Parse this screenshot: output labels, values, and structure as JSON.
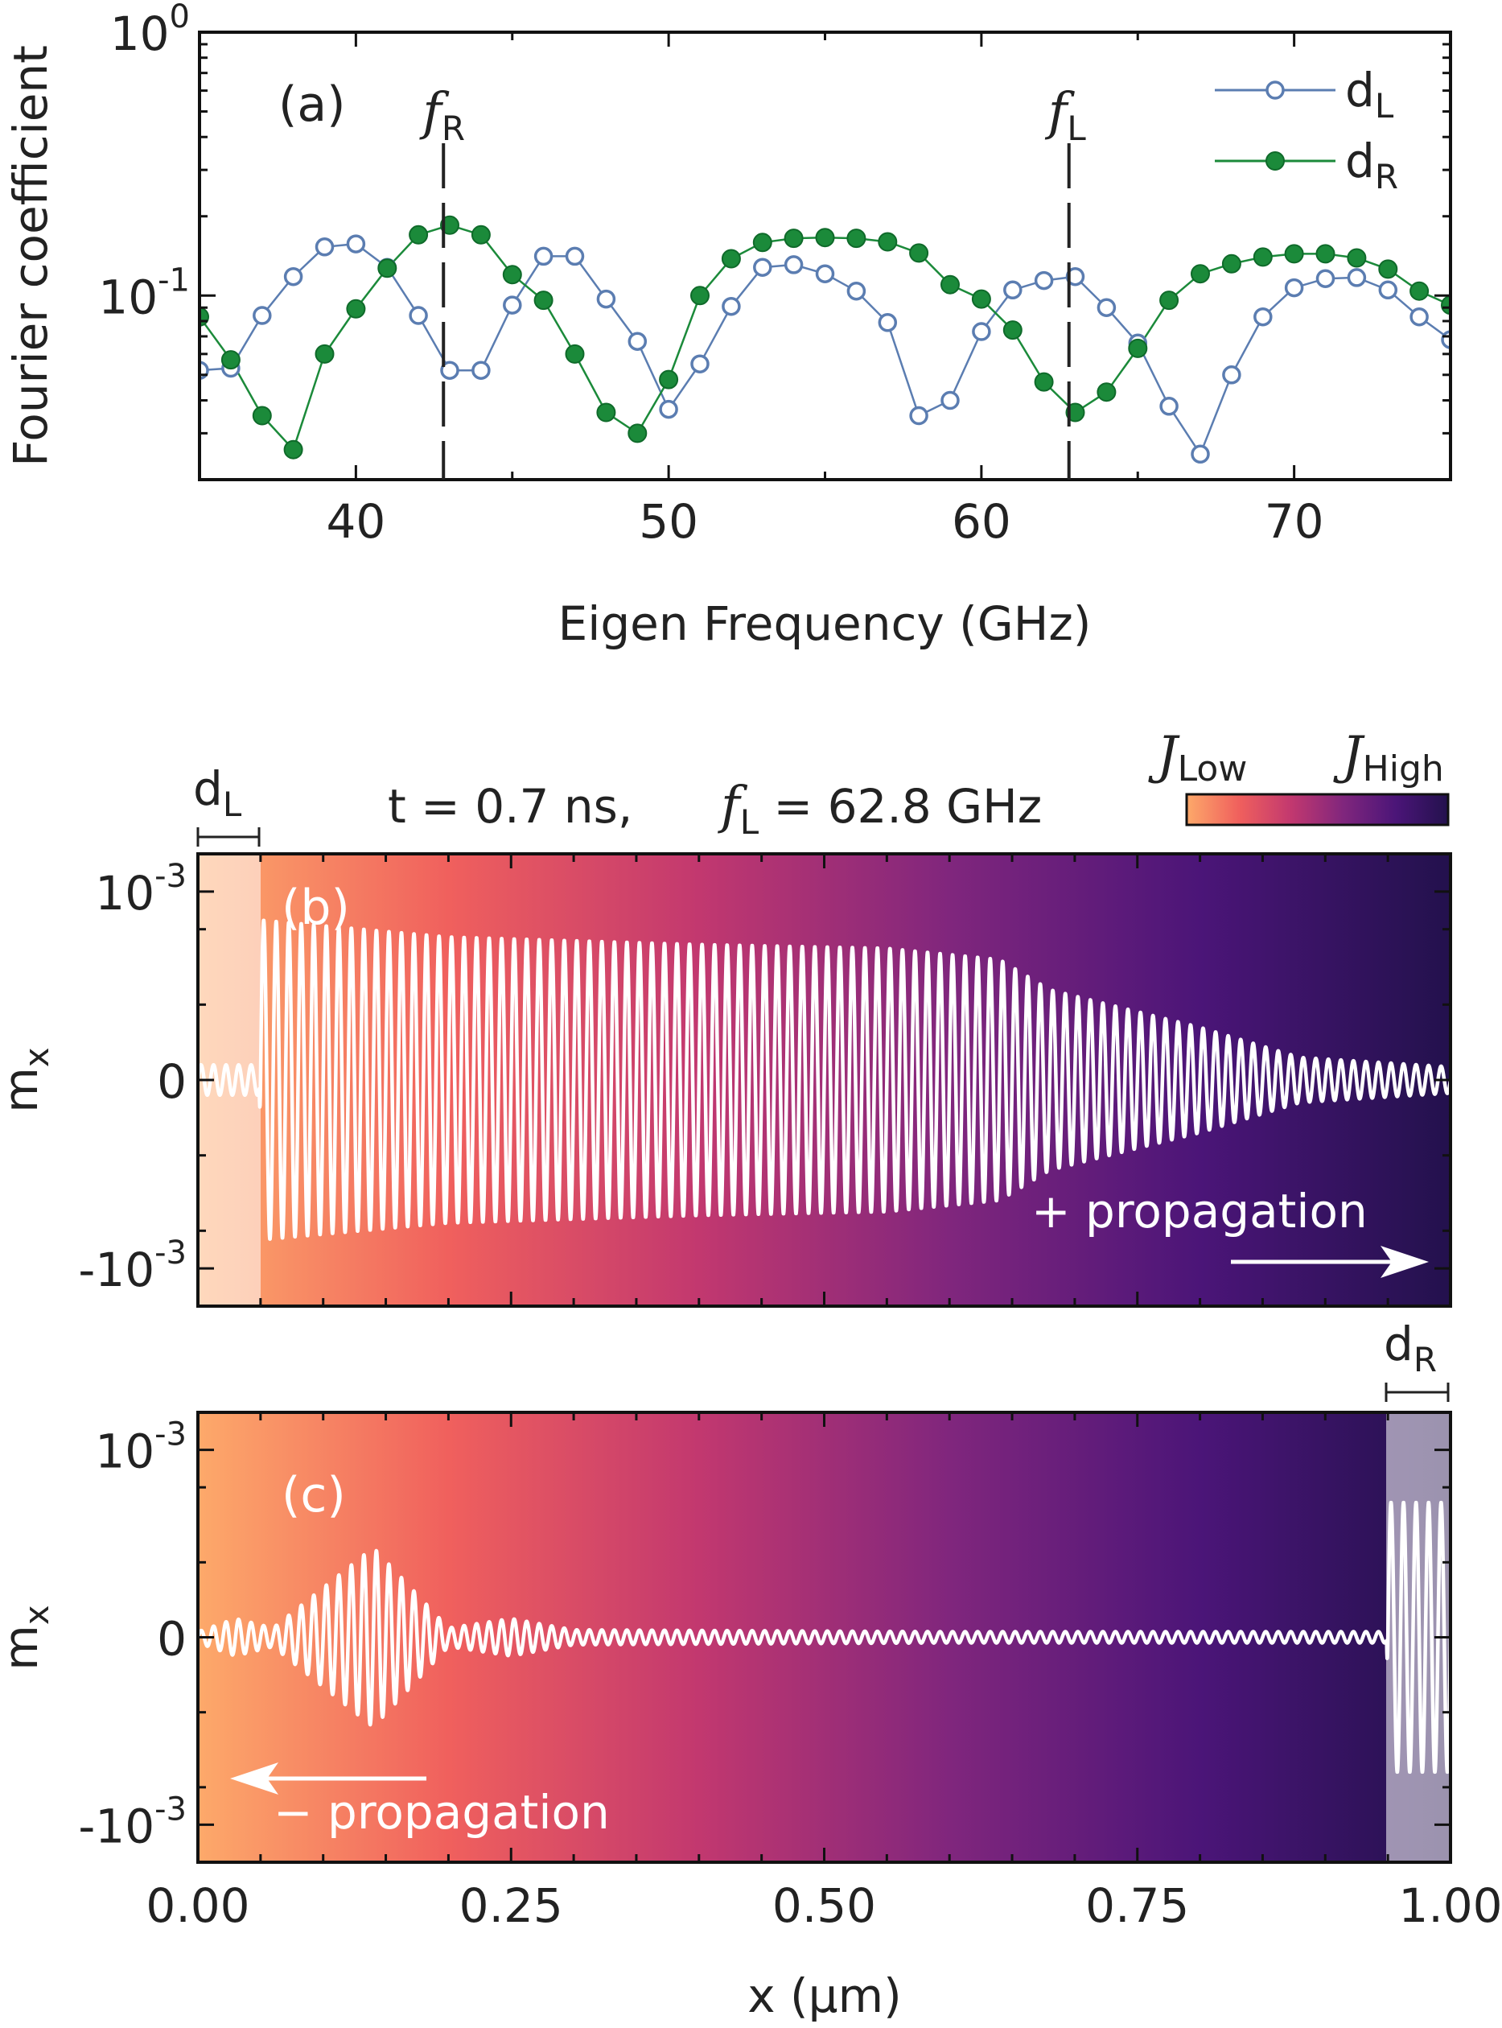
{
  "chart_data": [
    {
      "panel": "(a)",
      "type": "line",
      "xlabel": "Eigen Frequency (GHz)",
      "ylabel": "Fourier coefficient",
      "xlim": [
        35,
        75
      ],
      "ylim": [
        0.02,
        1
      ],
      "yscale": "log",
      "x_ticks": [
        "40",
        "50",
        "60",
        "70"
      ],
      "y_ticks": [
        {
          "value": 1,
          "base": "10",
          "exp": "0"
        },
        {
          "value": 0.1,
          "base": "10",
          "exp": "-1"
        }
      ],
      "grid": false,
      "legend_position": "top-right",
      "markers": [
        {
          "sym": "f",
          "sub": "R",
          "x": 42.8
        },
        {
          "sym": "f",
          "sub": "L",
          "x": 62.8
        }
      ],
      "series": [
        {
          "name": "d",
          "name_sub": "L",
          "color": "#5b7db1",
          "marker": "open-circle",
          "x": [
            35.0,
            36.0,
            37.0,
            38.0,
            39.0,
            40.0,
            41.0,
            42.0,
            43.0,
            44.0,
            45.0,
            46.0,
            47.0,
            48.0,
            49.0,
            50.0,
            51.0,
            52.0,
            53.0,
            54.0,
            55.0,
            56.0,
            57.0,
            58.0,
            59.0,
            60.0,
            61.0,
            62.0,
            63.0,
            64.0,
            65.0,
            66.0,
            67.0,
            68.0,
            69.0,
            70.0,
            71.0,
            72.0,
            73.0,
            74.0,
            75.0
          ],
          "y": [
            0.052,
            0.053,
            0.084,
            0.118,
            0.153,
            0.157,
            0.128,
            0.084,
            0.052,
            0.052,
            0.092,
            0.141,
            0.141,
            0.097,
            0.067,
            0.037,
            0.055,
            0.091,
            0.128,
            0.131,
            0.121,
            0.104,
            0.079,
            0.035,
            0.04,
            0.073,
            0.105,
            0.114,
            0.118,
            0.09,
            0.066,
            0.038,
            0.025,
            0.05,
            0.083,
            0.107,
            0.116,
            0.117,
            0.105,
            0.083,
            0.068
          ]
        },
        {
          "name": "d",
          "name_sub": "R",
          "color": "#1b8a3a",
          "marker": "filled-circle",
          "x": [
            35.0,
            36.0,
            37.0,
            38.0,
            39.0,
            40.0,
            41.0,
            42.0,
            43.0,
            44.0,
            45.0,
            46.0,
            47.0,
            48.0,
            49.0,
            50.0,
            51.0,
            52.0,
            53.0,
            54.0,
            55.0,
            56.0,
            57.0,
            58.0,
            59.0,
            60.0,
            61.0,
            62.0,
            63.0,
            64.0,
            65.0,
            66.0,
            67.0,
            68.0,
            69.0,
            70.0,
            71.0,
            72.0,
            73.0,
            74.0,
            75.0
          ],
          "y": [
            0.083,
            0.057,
            0.035,
            0.026,
            0.06,
            0.089,
            0.127,
            0.17,
            0.185,
            0.17,
            0.12,
            0.096,
            0.06,
            0.036,
            0.03,
            0.048,
            0.1,
            0.138,
            0.159,
            0.165,
            0.166,
            0.165,
            0.16,
            0.145,
            0.11,
            0.097,
            0.074,
            0.047,
            0.036,
            0.043,
            0.063,
            0.096,
            0.121,
            0.132,
            0.14,
            0.144,
            0.144,
            0.139,
            0.126,
            0.104,
            0.092
          ]
        }
      ]
    },
    {
      "panel": "(b)",
      "type": "line",
      "xlabel": "",
      "ylabel_sym": "m",
      "ylabel_sub": "x",
      "xlim": [
        0,
        1
      ],
      "ylim": [
        -0.0012,
        0.0012
      ],
      "y_ticks": [
        {
          "value": 0.001,
          "base": "10",
          "exp": "-3"
        },
        {
          "value": 0,
          "label": "0"
        },
        {
          "value": -0.001,
          "base": "-10",
          "exp": "-3"
        }
      ],
      "annotation": "t = 0.7 ns,",
      "annotation_freq": {
        "sym": "f",
        "sub": "L",
        "text": " = 62.8 GHz"
      },
      "region": {
        "label": "d",
        "label_sub": "L",
        "x": [
          0,
          0.05
        ]
      },
      "arrow_label": "+ propagation",
      "arrow_direction": "right",
      "background_gradient": [
        "#fda96a",
        "#f0605d",
        "#c2386f",
        "#80267d",
        "#4b1578",
        "#23114d"
      ],
      "series": [
        {
          "name": "",
          "color": "#ffffff",
          "wave_periods": 100,
          "envelope": [
            {
              "x": 0.0,
              "amp": 8e-05
            },
            {
              "x": 0.049,
              "amp": 8e-05
            },
            {
              "x": 0.05,
              "amp": 0.00085
            },
            {
              "x": 0.2,
              "amp": 0.00076
            },
            {
              "x": 0.4,
              "amp": 0.00072
            },
            {
              "x": 0.55,
              "amp": 0.0007
            },
            {
              "x": 0.64,
              "amp": 0.00064
            },
            {
              "x": 0.68,
              "amp": 0.00048
            },
            {
              "x": 0.8,
              "amp": 0.00028
            },
            {
              "x": 0.88,
              "amp": 0.00012
            },
            {
              "x": 1.0,
              "amp": 7e-05
            }
          ]
        }
      ]
    },
    {
      "panel": "(c)",
      "type": "line",
      "xlabel": "x (μm)",
      "ylabel_sym": "m",
      "ylabel_sub": "x",
      "xlim": [
        0,
        1
      ],
      "ylim": [
        -0.0012,
        0.0012
      ],
      "x_ticks": [
        "0.00",
        "0.25",
        "0.50",
        "0.75",
        "1.00"
      ],
      "y_ticks": [
        {
          "value": 0.001,
          "base": "10",
          "exp": "-3"
        },
        {
          "value": 0,
          "label": "0"
        },
        {
          "value": -0.001,
          "base": "-10",
          "exp": "-3"
        }
      ],
      "region": {
        "label": "d",
        "label_sub": "R",
        "x": [
          0.95,
          1.0
        ]
      },
      "arrow_label": "− propagation",
      "arrow_direction": "left",
      "background_gradient": [
        "#fda96a",
        "#f0605d",
        "#c2386f",
        "#80267d",
        "#4b1578",
        "#23114d"
      ],
      "series": [
        {
          "name": "",
          "color": "#ffffff",
          "wave_periods": 100,
          "envelope": [
            {
              "x": 0.0,
              "amp": 3e-05
            },
            {
              "x": 0.03,
              "amp": 0.0001
            },
            {
              "x": 0.06,
              "amp": 5e-05
            },
            {
              "x": 0.14,
              "amp": 0.00048
            },
            {
              "x": 0.2,
              "amp": 5e-05
            },
            {
              "x": 0.25,
              "amp": 0.0001
            },
            {
              "x": 0.3,
              "amp": 4e-05
            },
            {
              "x": 0.6,
              "amp": 3e-05
            },
            {
              "x": 0.949,
              "amp": 3e-05
            },
            {
              "x": 0.95,
              "amp": 0.00072
            },
            {
              "x": 1.0,
              "amp": 0.00072
            }
          ]
        }
      ]
    }
  ],
  "colorbar": {
    "low_sym": "J",
    "low_sub": "Low",
    "high_sym": "J",
    "high_sub": "High"
  }
}
